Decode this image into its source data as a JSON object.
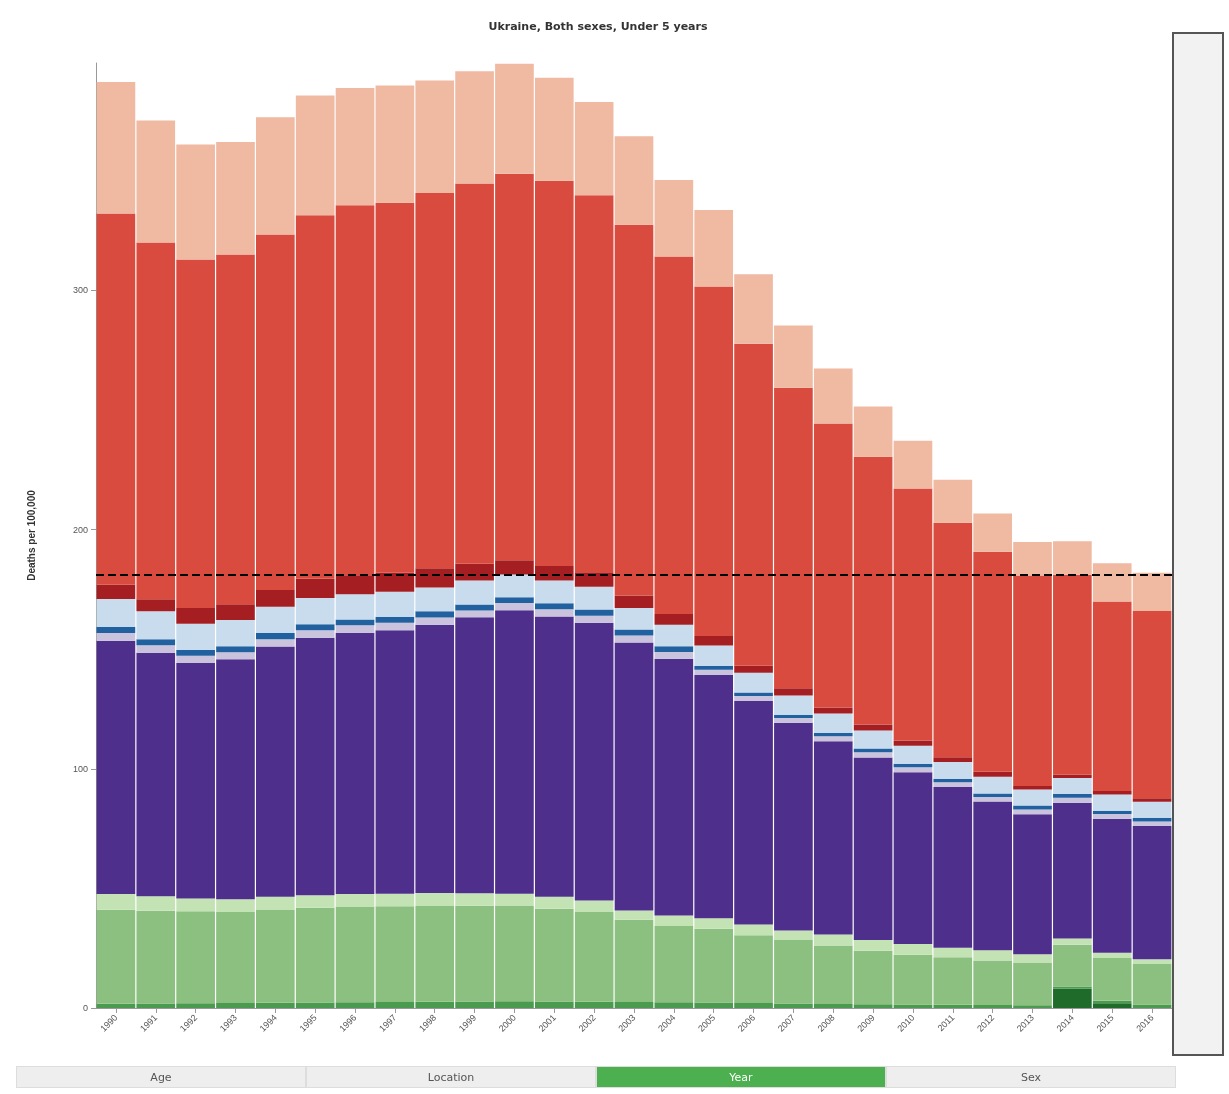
{
  "chart_data": {
    "type": "bar",
    "stacked": true,
    "title": "Ukraine, Both sexes, Under 5 years",
    "ylabel": "Deaths per 100,000",
    "categories": [
      "1990",
      "1991",
      "1992",
      "1993",
      "1994",
      "1995",
      "1996",
      "1997",
      "1998",
      "1999",
      "2000",
      "2001",
      "2002",
      "2003",
      "2004",
      "2005",
      "2006",
      "2007",
      "2008",
      "2009",
      "2010",
      "2011",
      "2012",
      "2013",
      "2014",
      "2015",
      "2016"
    ],
    "series": [
      {
        "color": "#1e6b2a",
        "values": [
          null,
          null,
          null,
          null,
          null,
          null,
          null,
          null,
          null,
          null,
          null,
          null,
          null,
          null,
          null,
          null,
          null,
          null,
          null,
          null,
          null,
          null,
          null,
          null,
          8,
          2,
          null
        ]
      },
      {
        "color": "#4a9a4f",
        "values": [
          1.8,
          1.9,
          2,
          2.1,
          2.2,
          2.3,
          2.4,
          2.5,
          2.6,
          2.7,
          2.8,
          2.7,
          2.6,
          2.5,
          2.4,
          2.3,
          2.1,
          1.9,
          1.7,
          1.6,
          1.5,
          1.4,
          1.3,
          1.2,
          1,
          1,
          1.5
        ]
      },
      {
        "color": "#8bc080",
        "values": [
          39.3,
          38.8,
          38.4,
          38,
          38.8,
          39.6,
          40,
          40,
          40,
          40,
          40,
          38.8,
          37.5,
          34.4,
          31.9,
          30.8,
          28.3,
          26.5,
          24.4,
          22.3,
          20.8,
          19.8,
          18.6,
          17.8,
          17.4,
          17.9,
          17.1
        ]
      },
      {
        "color": "#c4e3b5",
        "values": [
          6.6,
          6,
          5.4,
          5.4,
          5.5,
          5.2,
          5.3,
          5.3,
          5.5,
          5.3,
          5,
          5,
          4.8,
          3.9,
          4.4,
          4.4,
          4.5,
          4,
          4.6,
          4.5,
          4.5,
          4,
          4.2,
          3.5,
          2.6,
          2.2,
          1.8
        ]
      },
      {
        "color": "#4e2f8c",
        "values": [
          105.8,
          101.8,
          98.4,
          100.3,
          104.6,
          107.7,
          109.1,
          110.1,
          112.1,
          115.3,
          118.5,
          117.1,
          116.1,
          112,
          107.3,
          101.7,
          93.4,
          86.8,
          80.8,
          76.3,
          71.7,
          67.2,
          62.2,
          58.5,
          56.8,
          56,
          55.7
        ]
      },
      {
        "color": "#c9c3de",
        "values": [
          3.2,
          3.1,
          3,
          2.9,
          3,
          3.1,
          3.2,
          3.1,
          3,
          2.9,
          3,
          3.1,
          3,
          2.9,
          2.8,
          2.2,
          2.1,
          2,
          2.1,
          2.2,
          2.1,
          2,
          1.9,
          2,
          2.1,
          2,
          1.9
        ]
      },
      {
        "color": "#2261a0",
        "values": [
          2.6,
          2.5,
          2.4,
          2.5,
          2.6,
          2.5,
          2.4,
          2.5,
          2.6,
          2.5,
          2.4,
          2.5,
          2.6,
          2.5,
          2.4,
          1.6,
          1.5,
          1.4,
          1.5,
          1.6,
          1.5,
          1.4,
          1.5,
          1.6,
          1.5,
          1.4,
          1.5
        ]
      },
      {
        "color": "#c8dcee",
        "values": [
          11.7,
          11.7,
          11,
          11,
          11,
          11,
          10.5,
          10.5,
          10,
          10,
          9.5,
          9.5,
          9.5,
          9,
          9,
          8.5,
          8.2,
          8,
          8,
          7.5,
          7.5,
          7,
          7,
          6.7,
          6.7,
          6.7,
          6.7
        ]
      },
      {
        "color": "#a51f22",
        "values": [
          5.9,
          5.1,
          6.6,
          6.6,
          7,
          8,
          8,
          8,
          8,
          7,
          6,
          6,
          6,
          5.2,
          4.5,
          4,
          3,
          3,
          2.5,
          2.5,
          2.2,
          2,
          2,
          1.5,
          1.5,
          1.5,
          1.5
        ]
      },
      {
        "color": "#d94b3e",
        "values": [
          155.2,
          149.1,
          145.7,
          146.2,
          148.6,
          152,
          154.6,
          154.6,
          156.9,
          158.9,
          161.5,
          161.1,
          157.6,
          155,
          149.4,
          146.1,
          134.6,
          125.7,
          118.7,
          111.9,
          105.3,
          98,
          92,
          88,
          83.5,
          79.2,
          78.2
        ]
      },
      {
        "color": "#efb9a2",
        "values": [
          55,
          51,
          48,
          47,
          49,
          50,
          49,
          49,
          47,
          47,
          46,
          43,
          39,
          37,
          32,
          32,
          29,
          26,
          23,
          21,
          20,
          18,
          16,
          14,
          14,
          16,
          16
        ]
      }
    ],
    "ylim": [
      0,
      395
    ],
    "yticks": [
      0,
      100,
      200,
      300
    ],
    "grid": false,
    "ref_lines": [
      {
        "axis": "y",
        "value": 181,
        "color": "#000000",
        "line_style": "dashed"
      }
    ],
    "annotations": [
      "Age",
      "Location",
      "Year",
      "Sex"
    ]
  }
}
